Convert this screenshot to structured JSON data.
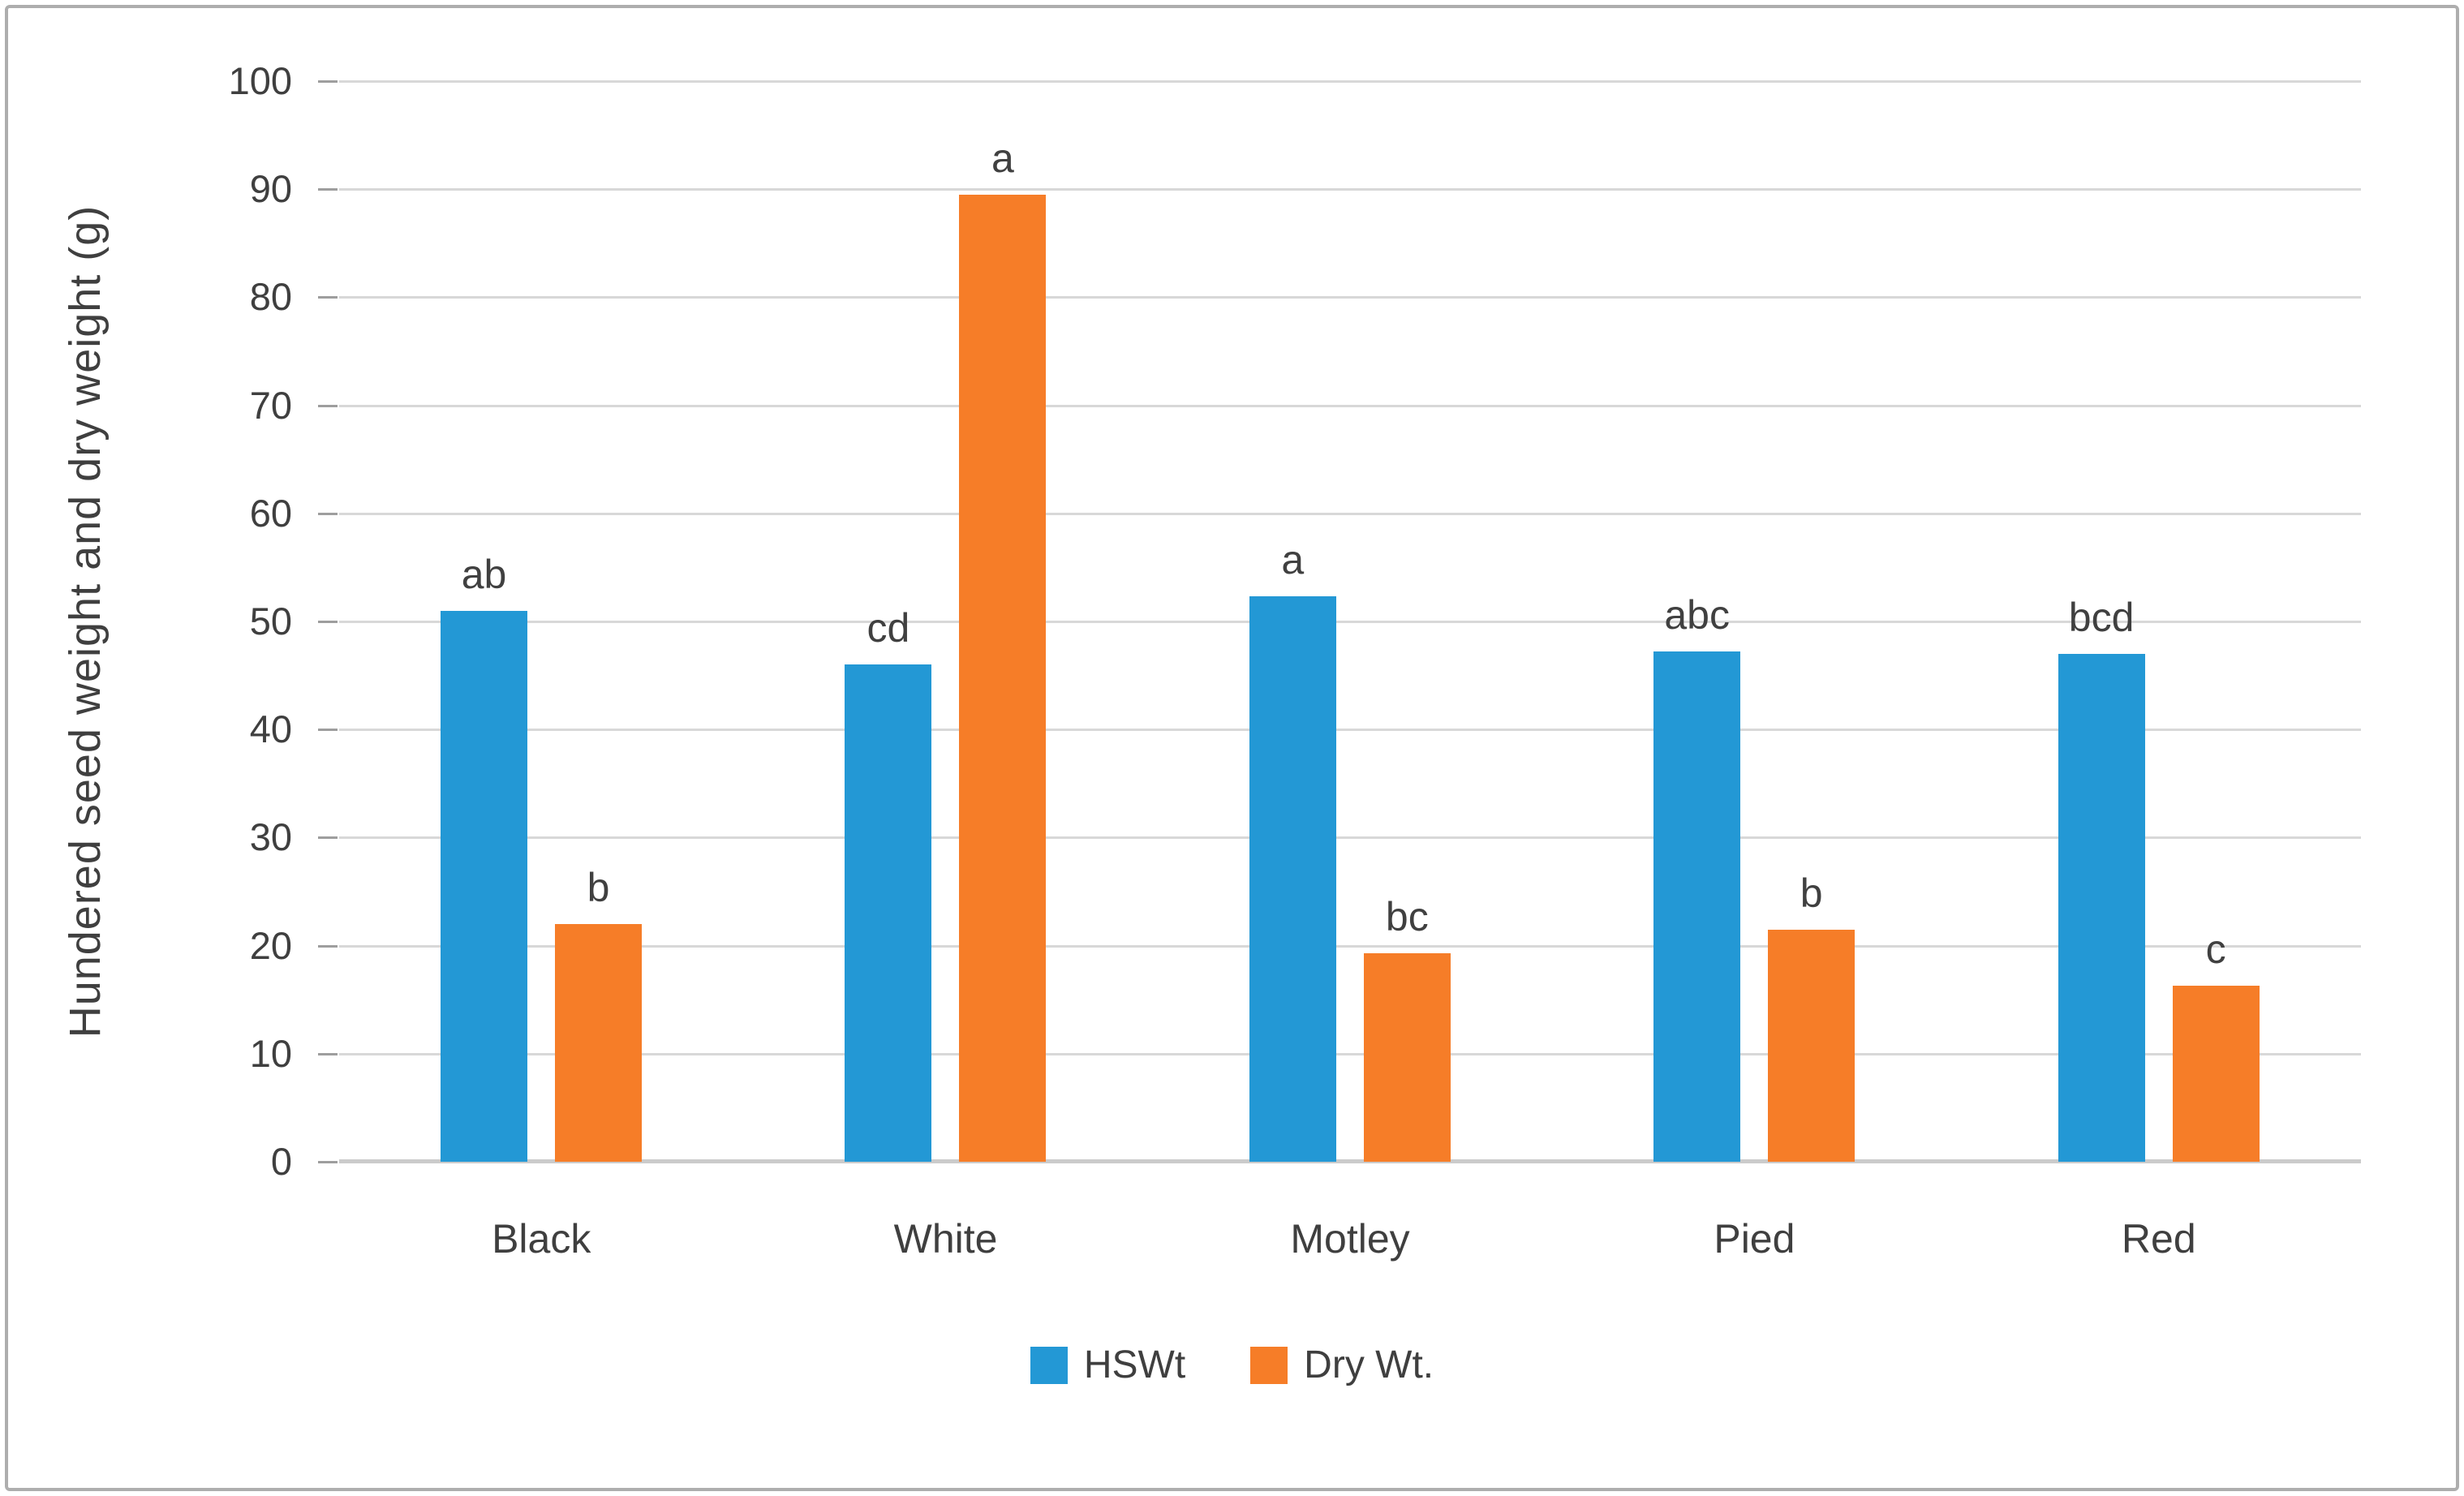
{
  "figure": {
    "background": "#ffffff",
    "border_color": "#aeaeae"
  },
  "chart_data": {
    "type": "bar",
    "title": "",
    "xlabel": "",
    "ylabel": "Hundered seed weight and dry weight (g)",
    "categories": [
      "Black",
      "White",
      "Motley",
      "Pied",
      "Red"
    ],
    "series": [
      {
        "name": "HSWt",
        "color": "#2398d5",
        "values": [
          51,
          46,
          52.3,
          47.2,
          47
        ],
        "bar_labels": [
          "ab",
          "cd",
          "a",
          "abc",
          "bcd"
        ]
      },
      {
        "name": "Dry Wt.",
        "color": "#f67d28",
        "values": [
          22,
          89.5,
          19.3,
          21.5,
          16.3
        ],
        "bar_labels": [
          "b",
          "a",
          "bc",
          "b",
          "c"
        ]
      }
    ],
    "ylim": [
      0,
      100
    ],
    "yticks": [
      0,
      10,
      20,
      30,
      40,
      50,
      60,
      70,
      80,
      90,
      100
    ],
    "grid": "horizontal",
    "gridline_color": "#d8d8d8",
    "axis_line_color": "#cbcbcb",
    "tick_mark_color": "#9e9e9e",
    "text_color": "#3f3f3f",
    "legend_position": "bottom",
    "legend": [
      "HSWt",
      "Dry Wt."
    ]
  }
}
